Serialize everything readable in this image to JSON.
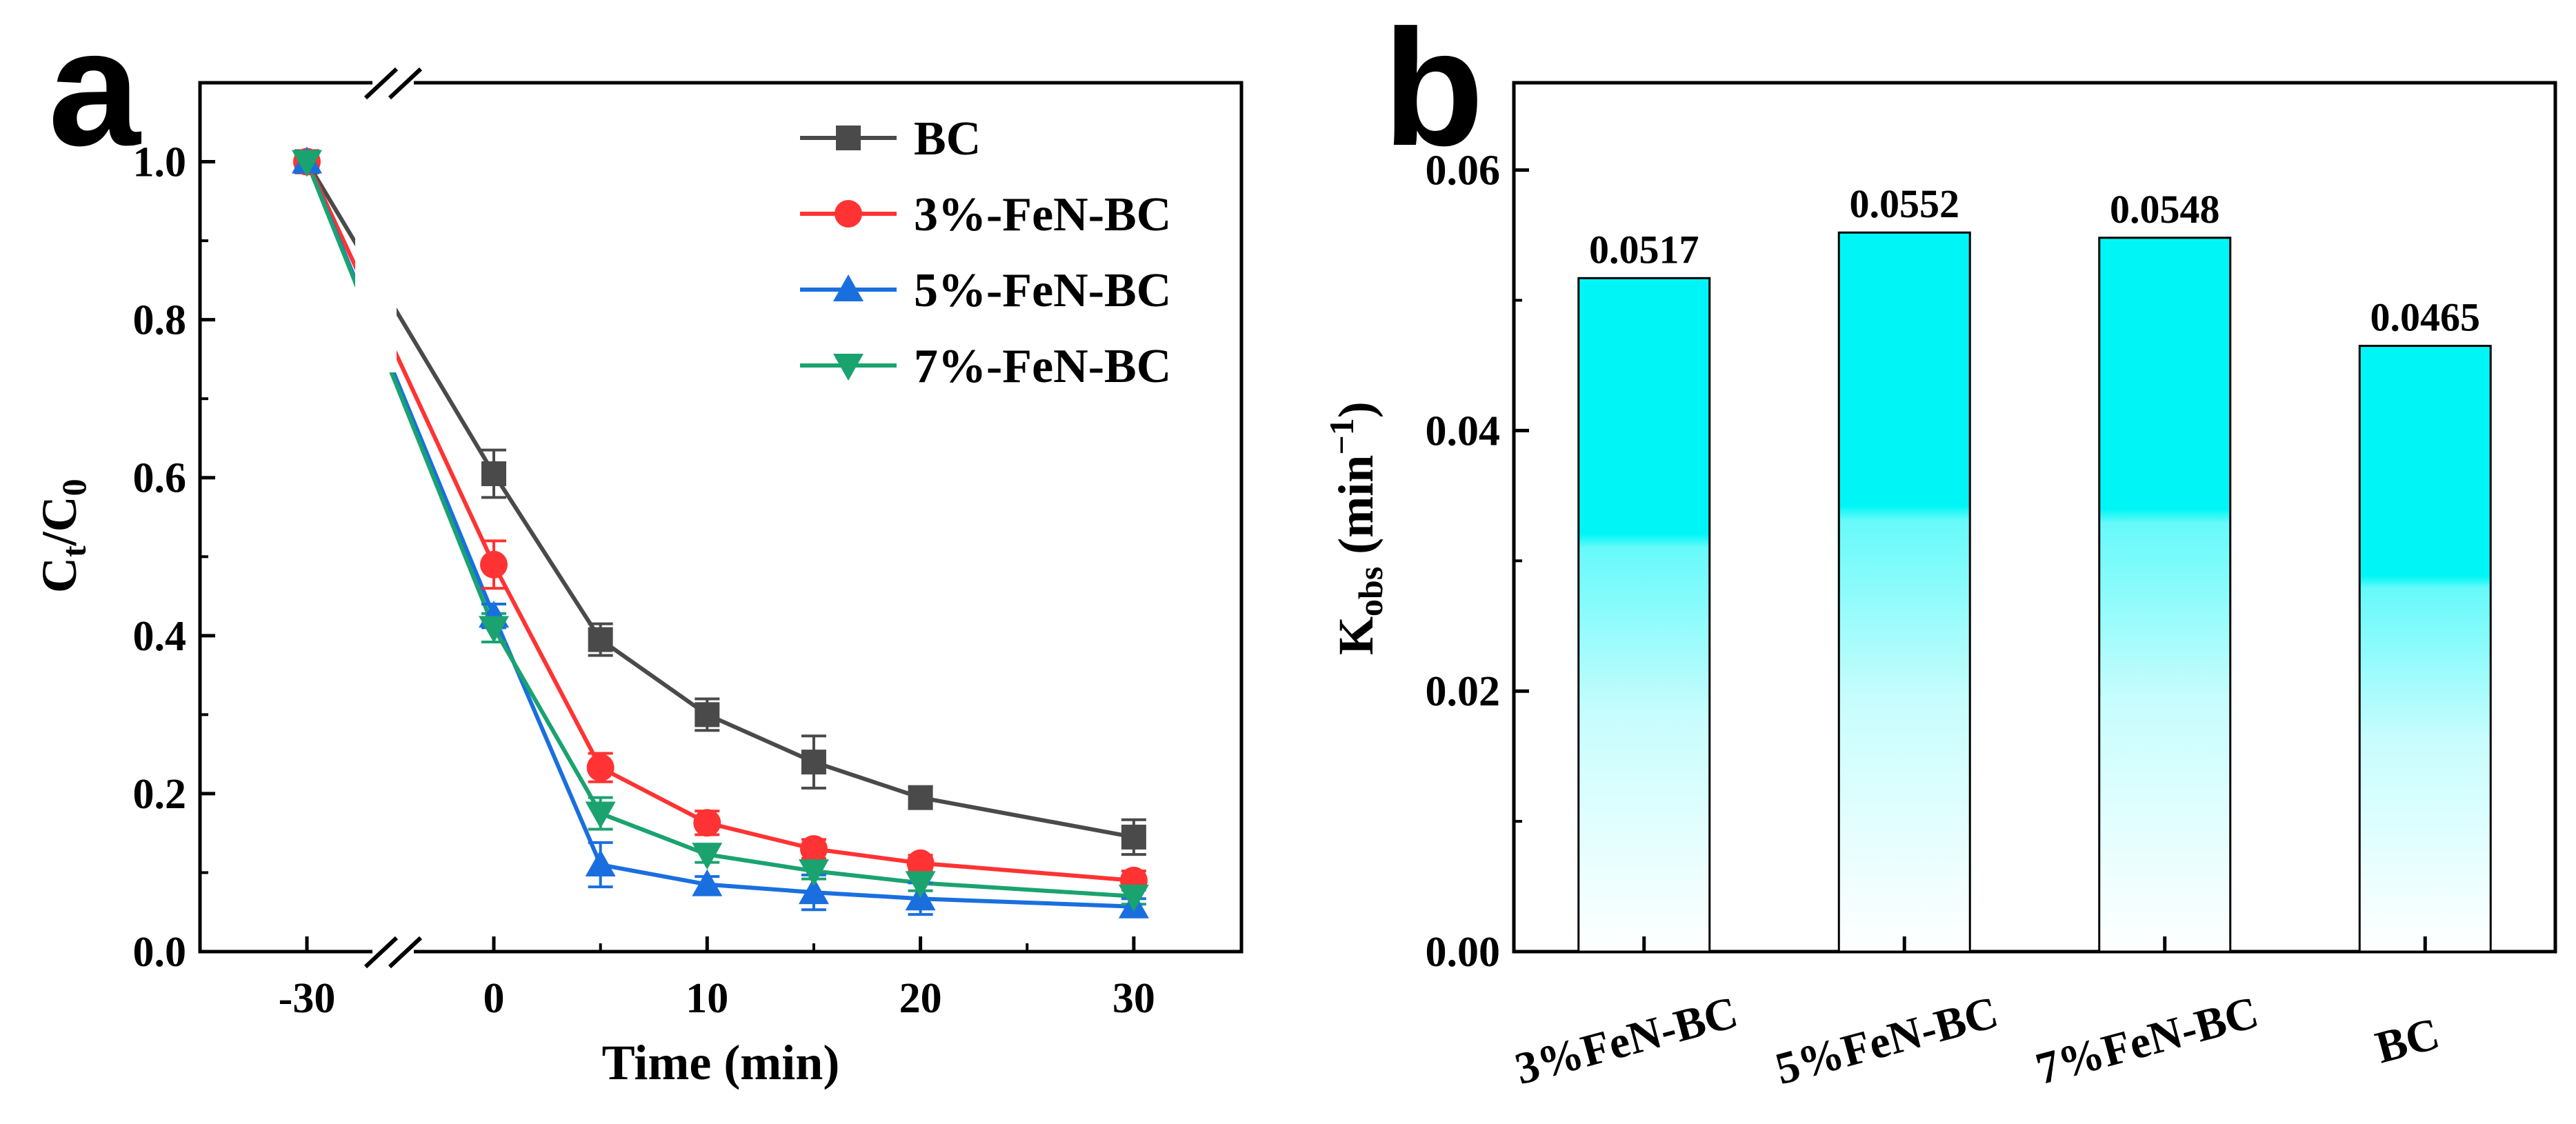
{
  "panel_a": {
    "letter": "a",
    "ylabel_main": "C",
    "ylabel_sub1": "t",
    "ylabel_sep": "/C",
    "ylabel_sub2": "0",
    "xlabel": "Time (min)"
  },
  "panel_b": {
    "letter": "b",
    "ylabel_main": "K",
    "ylabel_sub": "obs",
    "ylabel_unit": " (min",
    "ylabel_sup": "−1",
    "ylabel_close": ")"
  },
  "chart_data": [
    {
      "type": "line",
      "panel": "a",
      "xlabel": "Time (min)",
      "ylabel": "Ct/C0",
      "x": [
        -30,
        0,
        5,
        10,
        15,
        20,
        30
      ],
      "x_tick_labels": [
        "-30",
        "0",
        "10",
        "20",
        "30"
      ],
      "y_tick_labels": [
        "0.0",
        "0.2",
        "0.4",
        "0.6",
        "0.8",
        "1.0"
      ],
      "ylim": [
        0,
        1.1
      ],
      "axis_break": true,
      "legend_position": "top-right",
      "series": [
        {
          "name": "BC",
          "marker": "square",
          "color": "#4a4a4a",
          "values": [
            1.0,
            0.605,
            0.395,
            0.3,
            0.24,
            0.195,
            0.145
          ],
          "errors": [
            0.0,
            0.03,
            0.02,
            0.02,
            0.033,
            0.013,
            0.022
          ]
        },
        {
          "name": "3%-FeN-BC",
          "marker": "circle",
          "color": "#ff3333",
          "values": [
            1.0,
            0.49,
            0.233,
            0.163,
            0.13,
            0.112,
            0.09
          ],
          "errors": [
            0.0,
            0.03,
            0.018,
            0.015,
            0.012,
            0.01,
            0.012
          ]
        },
        {
          "name": "5%-FeN-BC",
          "marker": "triangle-up",
          "color": "#1a6fdf",
          "values": [
            1.0,
            0.425,
            0.11,
            0.085,
            0.075,
            0.067,
            0.057
          ],
          "errors": [
            0.0,
            0.015,
            0.028,
            0.01,
            0.022,
            0.02,
            0.01
          ]
        },
        {
          "name": "7%-FeN-BC",
          "marker": "triangle-down",
          "color": "#1aa36f",
          "values": [
            1.0,
            0.41,
            0.175,
            0.123,
            0.102,
            0.087,
            0.07
          ],
          "errors": [
            0.0,
            0.018,
            0.02,
            0.01,
            0.01,
            0.01,
            0.01
          ]
        }
      ]
    },
    {
      "type": "bar",
      "panel": "b",
      "ylabel": "Kobs (min−1)",
      "categories": [
        "3%FeN-BC",
        "5%FeN-BC",
        "7%FeN-BC",
        "BC"
      ],
      "values": [
        0.0517,
        0.0552,
        0.0548,
        0.0465
      ],
      "value_labels": [
        "0.0517",
        "0.0552",
        "0.0548",
        "0.0465"
      ],
      "y_tick_labels": [
        "0.00",
        "0.02",
        "0.04",
        "0.06"
      ],
      "ylim": [
        0,
        0.0667
      ],
      "bar_color": "#00ffff"
    }
  ]
}
